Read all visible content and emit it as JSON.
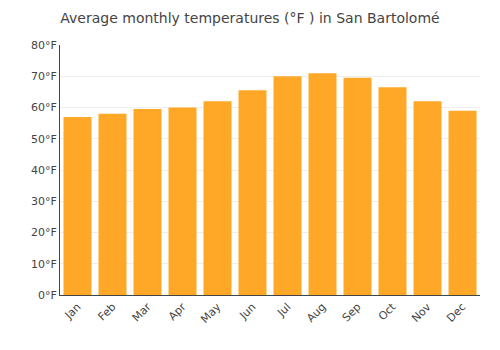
{
  "chart_data": {
    "type": "bar",
    "title": "Average monthly temperatures (°F ) in San Bartolomé",
    "categories": [
      "Jan",
      "Feb",
      "Mar",
      "Apr",
      "May",
      "Jun",
      "Jul",
      "Aug",
      "Sep",
      "Oct",
      "Nov",
      "Dec"
    ],
    "values": [
      57,
      58,
      59.5,
      60,
      62,
      65.5,
      70,
      71,
      69.5,
      66.5,
      62,
      59
    ],
    "color": "#FFA726",
    "ylim": [
      0,
      80
    ],
    "yticks": [
      {
        "value": 0,
        "label": "0°F"
      },
      {
        "value": 10,
        "label": "10°F"
      },
      {
        "value": 20,
        "label": "20°F"
      },
      {
        "value": 30,
        "label": "30°F"
      },
      {
        "value": 40,
        "label": "40°F"
      },
      {
        "value": 50,
        "label": "50°F"
      },
      {
        "value": 60,
        "label": "60°F"
      },
      {
        "value": 70,
        "label": "70°F"
      },
      {
        "value": 80,
        "label": "80°F"
      }
    ],
    "grid": true
  }
}
